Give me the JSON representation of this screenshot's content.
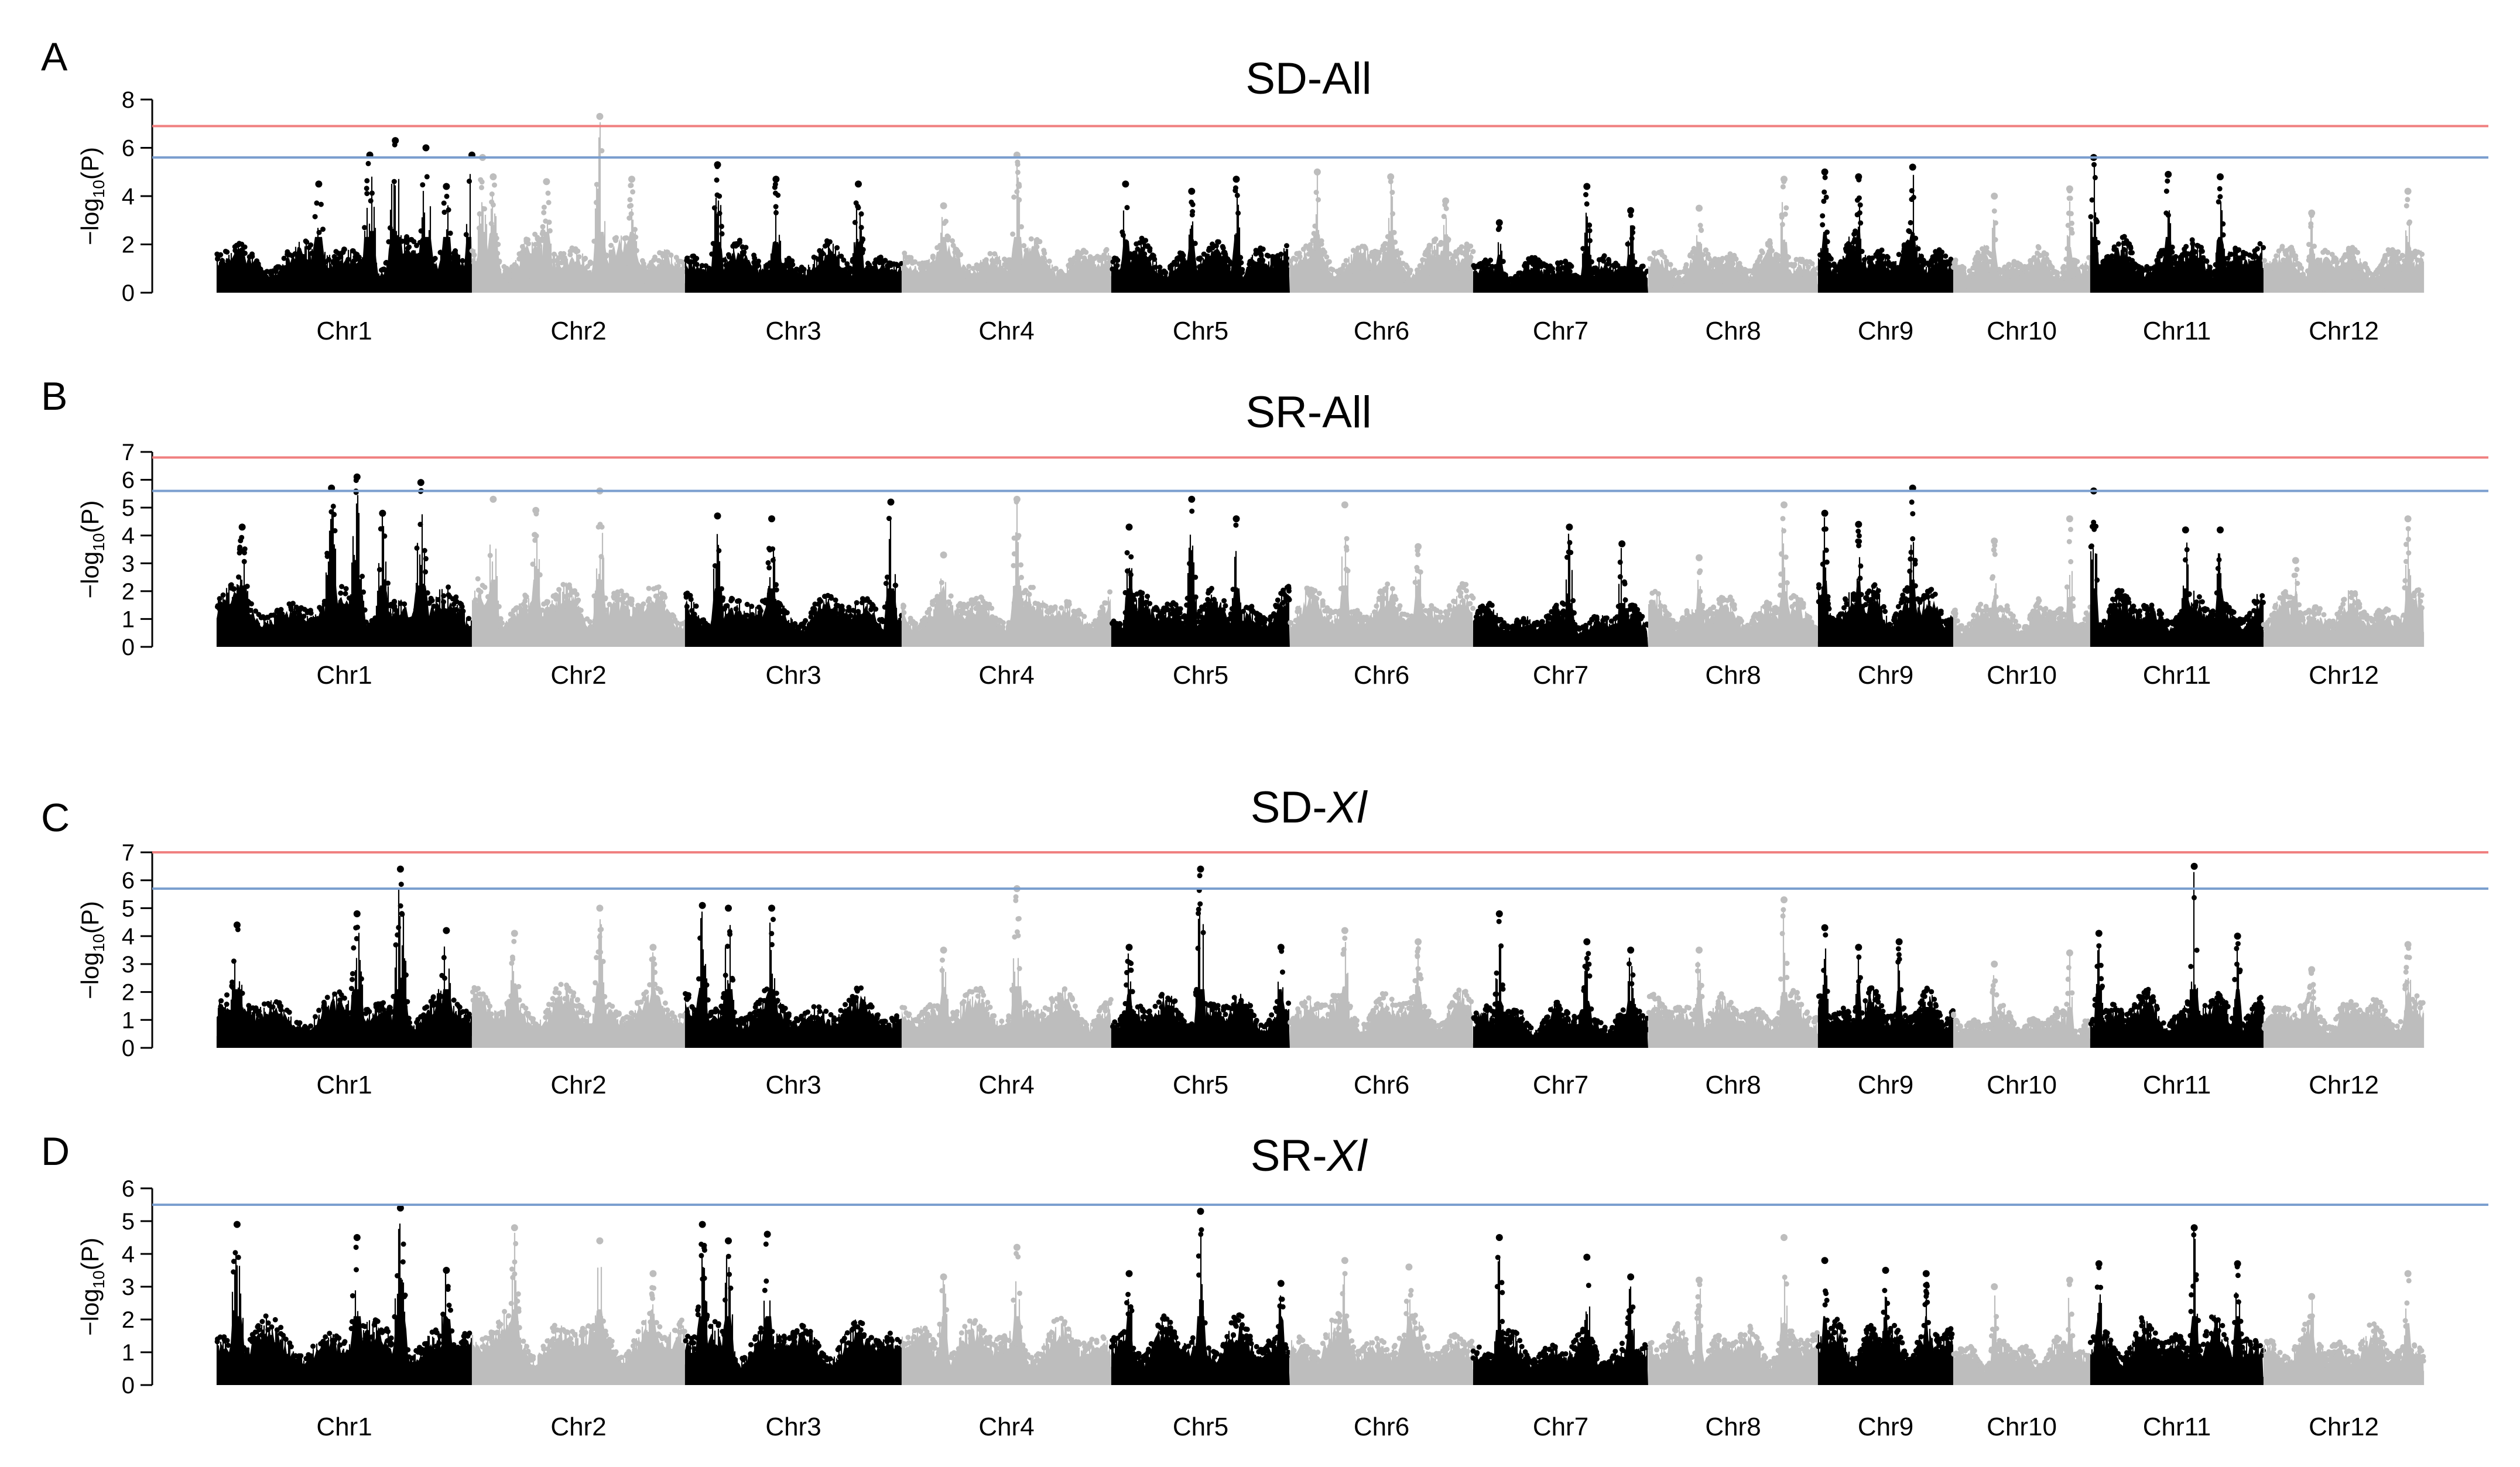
{
  "figure": {
    "chromosomes": [
      "Chr1",
      "Chr2",
      "Chr3",
      "Chr4",
      "Chr5",
      "Chr6",
      "Chr7",
      "Chr8",
      "Chr9",
      "Chr10",
      "Chr11",
      "Chr12"
    ],
    "chromosome_colors": [
      "#000000",
      "#bdbdbd"
    ],
    "threshold_colors": {
      "red": "#f08080",
      "blue": "#7b9fcf"
    }
  },
  "chart_data": [
    {
      "type": "scatter",
      "panel_label": "A",
      "title": "SD-All",
      "title_parts": [
        {
          "text": "SD-All",
          "italic": false
        }
      ],
      "ylabel": "-log10(P)",
      "ylabel_parts": [
        "−log",
        "10",
        "(P)"
      ],
      "ylim": [
        0,
        8
      ],
      "yticks": [
        0,
        2,
        4,
        6,
        8
      ],
      "x": [
        "Chr1",
        "Chr2",
        "Chr3",
        "Chr4",
        "Chr5",
        "Chr6",
        "Chr7",
        "Chr8",
        "Chr9",
        "Chr10",
        "Chr11",
        "Chr12"
      ],
      "thresholds": [
        {
          "color": "red",
          "value": 6.9
        },
        {
          "color": "blue",
          "value": 5.6
        }
      ],
      "base_height": [
        2.2,
        2.4,
        2.0,
        2.2,
        2.1,
        2.3,
        1.5,
        2.0,
        2.4,
        1.8,
        2.2,
        2.0
      ],
      "chr_peaks": [
        [
          [
            0.4,
            4.5
          ],
          [
            0.6,
            5.7
          ],
          [
            0.7,
            6.3
          ],
          [
            0.82,
            6.0
          ],
          [
            0.9,
            4.4
          ],
          [
            1.0,
            5.7
          ]
        ],
        [
          [
            0.6,
            7.3
          ],
          [
            0.35,
            4.6
          ],
          [
            0.1,
            4.8
          ],
          [
            0.05,
            5.6
          ],
          [
            0.75,
            4.7
          ]
        ],
        [
          [
            0.15,
            5.3
          ],
          [
            0.42,
            4.7
          ],
          [
            0.8,
            4.5
          ]
        ],
        [
          [
            0.55,
            5.7
          ],
          [
            0.2,
            3.6
          ]
        ],
        [
          [
            0.08,
            4.5
          ],
          [
            0.45,
            4.2
          ],
          [
            0.7,
            4.7
          ]
        ],
        [
          [
            0.15,
            5.0
          ],
          [
            0.55,
            4.8
          ],
          [
            0.85,
            3.8
          ]
        ],
        [
          [
            0.65,
            4.4
          ],
          [
            0.9,
            3.4
          ],
          [
            0.15,
            2.9
          ]
        ],
        [
          [
            0.8,
            4.7
          ],
          [
            0.3,
            3.5
          ]
        ],
        [
          [
            0.05,
            5.0
          ],
          [
            0.3,
            4.8
          ],
          [
            0.7,
            5.2
          ]
        ],
        [
          [
            0.3,
            4.0
          ],
          [
            0.85,
            4.3
          ]
        ],
        [
          [
            0.02,
            5.6
          ],
          [
            0.45,
            4.9
          ],
          [
            0.75,
            4.8
          ]
        ],
        [
          [
            0.3,
            3.3
          ],
          [
            0.9,
            4.2
          ]
        ]
      ]
    },
    {
      "type": "scatter",
      "panel_label": "B",
      "title": "SR-All",
      "title_parts": [
        {
          "text": "SR-All",
          "italic": false
        }
      ],
      "ylabel": "-log10(P)",
      "ylabel_parts": [
        "−log",
        "10",
        "(P)"
      ],
      "ylim": [
        0,
        7
      ],
      "yticks": [
        0,
        1,
        2,
        3,
        4,
        5,
        6,
        7
      ],
      "x": [
        "Chr1",
        "Chr2",
        "Chr3",
        "Chr4",
        "Chr5",
        "Chr6",
        "Chr7",
        "Chr8",
        "Chr9",
        "Chr10",
        "Chr11",
        "Chr12"
      ],
      "thresholds": [
        {
          "color": "red",
          "value": 6.8
        },
        {
          "color": "blue",
          "value": 5.6
        }
      ],
      "base_height": [
        2.1,
        2.3,
        2.0,
        2.1,
        2.0,
        2.1,
        1.5,
        1.9,
        2.3,
        1.7,
        2.0,
        1.9
      ],
      "chr_peaks": [
        [
          [
            0.45,
            5.7
          ],
          [
            0.55,
            6.1
          ],
          [
            0.8,
            5.9
          ],
          [
            0.1,
            4.3
          ],
          [
            0.65,
            4.8
          ]
        ],
        [
          [
            0.6,
            5.6
          ],
          [
            0.1,
            5.3
          ],
          [
            0.3,
            4.9
          ]
        ],
        [
          [
            0.15,
            4.7
          ],
          [
            0.4,
            4.6
          ],
          [
            0.95,
            5.2
          ]
        ],
        [
          [
            0.55,
            5.3
          ],
          [
            0.2,
            3.3
          ]
        ],
        [
          [
            0.45,
            5.3
          ],
          [
            0.1,
            4.3
          ],
          [
            0.7,
            4.6
          ]
        ],
        [
          [
            0.3,
            5.1
          ],
          [
            0.7,
            3.6
          ]
        ],
        [
          [
            0.55,
            4.3
          ],
          [
            0.85,
            3.7
          ]
        ],
        [
          [
            0.8,
            5.1
          ],
          [
            0.3,
            3.2
          ]
        ],
        [
          [
            0.05,
            4.8
          ],
          [
            0.7,
            5.7
          ],
          [
            0.3,
            4.4
          ]
        ],
        [
          [
            0.3,
            3.8
          ],
          [
            0.85,
            4.6
          ]
        ],
        [
          [
            0.02,
            5.6
          ],
          [
            0.55,
            4.2
          ],
          [
            0.75,
            4.2
          ]
        ],
        [
          [
            0.9,
            4.6
          ],
          [
            0.2,
            3.1
          ]
        ]
      ]
    },
    {
      "type": "scatter",
      "panel_label": "C",
      "title": "SD-Xl",
      "title_parts": [
        {
          "text": "SD-",
          "italic": false
        },
        {
          "text": "Xl",
          "italic": true
        }
      ],
      "ylabel": "-log10(P)",
      "ylabel_parts": [
        "−log",
        "10",
        "(P)"
      ],
      "ylim": [
        0,
        7
      ],
      "yticks": [
        0,
        1,
        2,
        3,
        4,
        5,
        6,
        7
      ],
      "x": [
        "Chr1",
        "Chr2",
        "Chr3",
        "Chr4",
        "Chr5",
        "Chr6",
        "Chr7",
        "Chr8",
        "Chr9",
        "Chr10",
        "Chr11",
        "Chr12"
      ],
      "thresholds": [
        {
          "color": "red",
          "value": 7.0
        },
        {
          "color": "blue",
          "value": 5.7
        }
      ],
      "base_height": [
        2.0,
        2.2,
        2.0,
        2.1,
        2.0,
        2.1,
        1.6,
        1.9,
        2.0,
        1.4,
        2.0,
        1.9
      ],
      "chr_peaks": [
        [
          [
            0.72,
            6.4
          ],
          [
            0.55,
            4.8
          ],
          [
            0.08,
            4.4
          ],
          [
            0.9,
            4.2
          ]
        ],
        [
          [
            0.6,
            5.0
          ],
          [
            0.2,
            4.1
          ],
          [
            0.85,
            3.6
          ]
        ],
        [
          [
            0.08,
            5.1
          ],
          [
            0.2,
            5.0
          ],
          [
            0.4,
            5.0
          ]
        ],
        [
          [
            0.55,
            5.7
          ],
          [
            0.2,
            3.5
          ]
        ],
        [
          [
            0.5,
            6.4
          ],
          [
            0.1,
            3.6
          ],
          [
            0.95,
            3.6
          ]
        ],
        [
          [
            0.3,
            4.2
          ],
          [
            0.7,
            3.8
          ]
        ],
        [
          [
            0.15,
            4.8
          ],
          [
            0.65,
            3.8
          ],
          [
            0.9,
            3.5
          ]
        ],
        [
          [
            0.8,
            5.3
          ],
          [
            0.3,
            3.5
          ]
        ],
        [
          [
            0.05,
            4.3
          ],
          [
            0.6,
            3.8
          ],
          [
            0.3,
            3.6
          ]
        ],
        [
          [
            0.3,
            3.0
          ],
          [
            0.85,
            3.4
          ]
        ],
        [
          [
            0.6,
            6.5
          ],
          [
            0.05,
            4.1
          ],
          [
            0.85,
            4.0
          ]
        ],
        [
          [
            0.9,
            3.7
          ],
          [
            0.3,
            2.8
          ]
        ]
      ]
    },
    {
      "type": "scatter",
      "panel_label": "D",
      "title": "SR-Xl",
      "title_parts": [
        {
          "text": "SR-",
          "italic": false
        },
        {
          "text": "Xl",
          "italic": true
        }
      ],
      "ylabel": "-log10(P)",
      "ylabel_parts": [
        "−log",
        "10",
        "(P)"
      ],
      "ylim": [
        0,
        6
      ],
      "yticks": [
        0,
        1,
        2,
        3,
        4,
        5,
        6
      ],
      "x": [
        "Chr1",
        "Chr2",
        "Chr3",
        "Chr4",
        "Chr5",
        "Chr6",
        "Chr7",
        "Chr8",
        "Chr9",
        "Chr10",
        "Chr11",
        "Chr12"
      ],
      "thresholds": [
        {
          "color": "blue",
          "value": 5.5
        }
      ],
      "base_height": [
        2.0,
        2.2,
        2.0,
        2.0,
        2.0,
        2.0,
        1.6,
        1.8,
        2.0,
        1.4,
        2.0,
        1.8
      ],
      "chr_peaks": [
        [
          [
            0.72,
            5.4
          ],
          [
            0.08,
            4.9
          ],
          [
            0.55,
            4.5
          ],
          [
            0.9,
            3.5
          ]
        ],
        [
          [
            0.2,
            4.8
          ],
          [
            0.6,
            4.4
          ],
          [
            0.85,
            3.4
          ]
        ],
        [
          [
            0.08,
            4.9
          ],
          [
            0.2,
            4.4
          ],
          [
            0.38,
            4.6
          ]
        ],
        [
          [
            0.55,
            4.2
          ],
          [
            0.2,
            3.3
          ]
        ],
        [
          [
            0.5,
            5.3
          ],
          [
            0.1,
            3.4
          ],
          [
            0.95,
            3.1
          ]
        ],
        [
          [
            0.3,
            3.8
          ],
          [
            0.65,
            3.6
          ]
        ],
        [
          [
            0.15,
            4.5
          ],
          [
            0.65,
            3.9
          ],
          [
            0.9,
            3.3
          ]
        ],
        [
          [
            0.8,
            4.5
          ],
          [
            0.3,
            3.2
          ]
        ],
        [
          [
            0.05,
            3.8
          ],
          [
            0.5,
            3.5
          ],
          [
            0.8,
            3.4
          ]
        ],
        [
          [
            0.3,
            3.0
          ],
          [
            0.85,
            3.2
          ]
        ],
        [
          [
            0.6,
            4.8
          ],
          [
            0.05,
            3.7
          ],
          [
            0.85,
            3.7
          ]
        ],
        [
          [
            0.9,
            3.4
          ],
          [
            0.3,
            2.7
          ]
        ]
      ]
    }
  ]
}
